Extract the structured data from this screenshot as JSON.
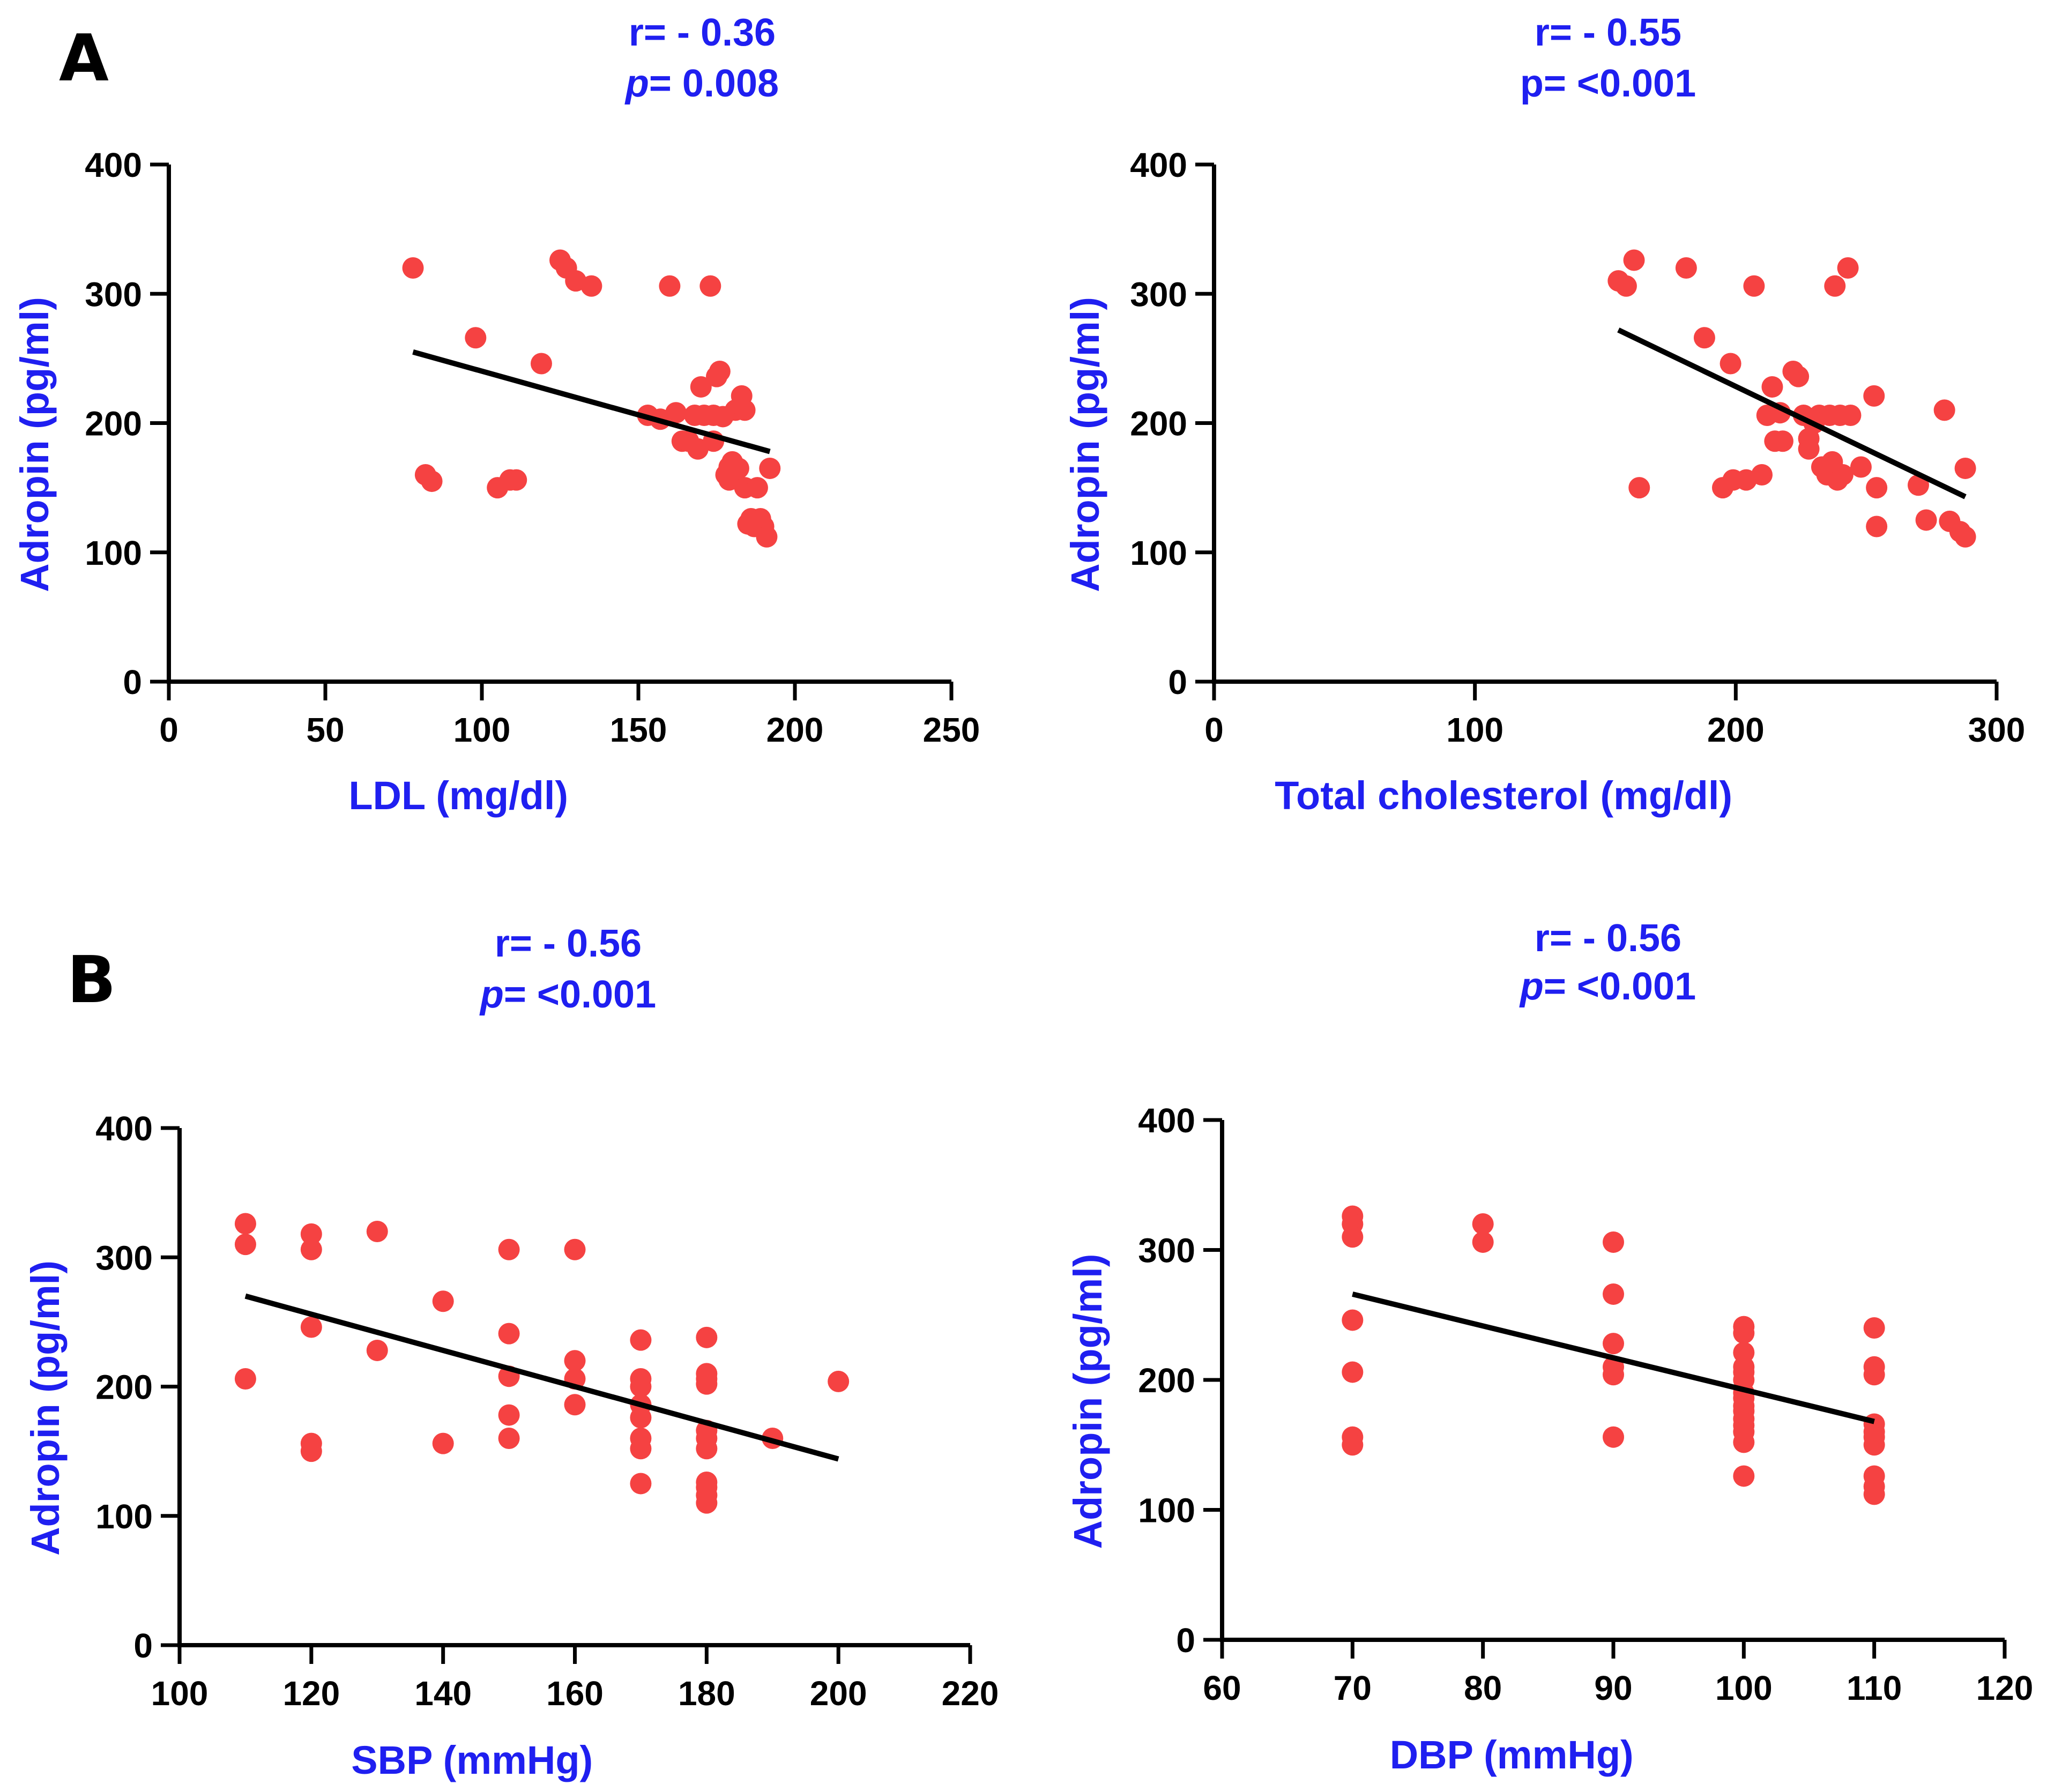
{
  "figure": {
    "panel_labels": [
      "A",
      "B"
    ],
    "colors": {
      "annotation": "#1f1ff0",
      "axis_label": "#1f1ff0",
      "point": "#f54242",
      "fit_line": "#000000",
      "axis": "#000000"
    }
  },
  "chart_data": [
    {
      "type": "scatter",
      "panel": "A",
      "r_text": "r= - 0.36",
      "p_label": "p",
      "p_value": "= 0.008",
      "xlabel": "LDL (mg/dl)",
      "ylabel": "Adropin (pg/ml)",
      "xlim": [
        0,
        250
      ],
      "ylim": [
        0,
        400
      ],
      "xticks": [
        0,
        50,
        100,
        150,
        200,
        250
      ],
      "yticks": [
        0,
        100,
        200,
        300,
        400
      ],
      "fit_line": [
        [
          78,
          255
        ],
        [
          192,
          178
        ]
      ],
      "points": [
        [
          78,
          320
        ],
        [
          82,
          160
        ],
        [
          84,
          155
        ],
        [
          98,
          266
        ],
        [
          105,
          150
        ],
        [
          109,
          156
        ],
        [
          111,
          156
        ],
        [
          119,
          246
        ],
        [
          125,
          326
        ],
        [
          127,
          320
        ],
        [
          130,
          310
        ],
        [
          135,
          306
        ],
        [
          153,
          206
        ],
        [
          157,
          203
        ],
        [
          160,
          306
        ],
        [
          162,
          208
        ],
        [
          164,
          186
        ],
        [
          166,
          186
        ],
        [
          168,
          206
        ],
        [
          169,
          180
        ],
        [
          170,
          228
        ],
        [
          171,
          206
        ],
        [
          173,
          306
        ],
        [
          174,
          206
        ],
        [
          174,
          186
        ],
        [
          175,
          236
        ],
        [
          176,
          240
        ],
        [
          177,
          205
        ],
        [
          178,
          160
        ],
        [
          179,
          156
        ],
        [
          179,
          166
        ],
        [
          180,
          170
        ],
        [
          181,
          210
        ],
        [
          182,
          165
        ],
        [
          183,
          221
        ],
        [
          184,
          150
        ],
        [
          184,
          210
        ],
        [
          185,
          122
        ],
        [
          186,
          126
        ],
        [
          187,
          120
        ],
        [
          188,
          150
        ],
        [
          189,
          126
        ],
        [
          190,
          120
        ],
        [
          191,
          112
        ],
        [
          192,
          165
        ]
      ]
    },
    {
      "type": "scatter",
      "panel": "A",
      "r_text": "r= - 0.55",
      "p_label": "p",
      "p_value": "= <0.001",
      "p_italic": false,
      "xlabel": "Total cholesterol (mg/dl)",
      "ylabel": "Adropin (pg/ml)",
      "xlim": [
        0,
        300
      ],
      "ylim": [
        0,
        400
      ],
      "xticks": [
        0,
        100,
        200,
        300
      ],
      "yticks": [
        0,
        100,
        200,
        300,
        400
      ],
      "fit_line": [
        [
          155,
          272
        ],
        [
          288,
          143
        ]
      ],
      "points": [
        [
          155,
          310
        ],
        [
          158,
          306
        ],
        [
          161,
          326
        ],
        [
          163,
          150
        ],
        [
          181,
          320
        ],
        [
          188,
          266
        ],
        [
          195,
          150
        ],
        [
          198,
          246
        ],
        [
          199,
          156
        ],
        [
          204,
          156
        ],
        [
          207,
          306
        ],
        [
          210,
          160
        ],
        [
          212,
          206
        ],
        [
          214,
          228
        ],
        [
          215,
          186
        ],
        [
          217,
          208
        ],
        [
          218,
          186
        ],
        [
          222,
          240
        ],
        [
          224,
          236
        ],
        [
          226,
          206
        ],
        [
          228,
          180
        ],
        [
          228,
          188
        ],
        [
          230,
          200
        ],
        [
          232,
          206
        ],
        [
          233,
          166
        ],
        [
          235,
          160
        ],
        [
          236,
          206
        ],
        [
          237,
          170
        ],
        [
          238,
          306
        ],
        [
          239,
          156
        ],
        [
          240,
          206
        ],
        [
          241,
          160
        ],
        [
          243,
          320
        ],
        [
          244,
          206
        ],
        [
          248,
          166
        ],
        [
          253,
          221
        ],
        [
          254,
          150
        ],
        [
          254,
          120
        ],
        [
          270,
          152
        ],
        [
          273,
          125
        ],
        [
          280,
          210
        ],
        [
          282,
          124
        ],
        [
          286,
          116
        ],
        [
          288,
          112
        ],
        [
          288,
          165
        ]
      ]
    },
    {
      "type": "scatter",
      "panel": "B",
      "r_text": "r= - 0.56",
      "p_label": "p",
      "p_value": "= <0.001",
      "xlabel": "SBP (mmHg)",
      "ylabel": "Adropin (pg/ml)",
      "xlim": [
        100,
        220
      ],
      "ylim": [
        0,
        400
      ],
      "xticks": [
        100,
        120,
        140,
        160,
        180,
        200,
        220
      ],
      "yticks": [
        0,
        100,
        200,
        300,
        400
      ],
      "fit_line": [
        [
          110,
          270
        ],
        [
          200,
          144
        ]
      ],
      "points": [
        [
          110,
          326
        ],
        [
          110,
          310
        ],
        [
          110,
          206
        ],
        [
          120,
          318
        ],
        [
          120,
          306
        ],
        [
          120,
          246
        ],
        [
          120,
          156
        ],
        [
          120,
          150
        ],
        [
          130,
          320
        ],
        [
          130,
          228
        ],
        [
          140,
          266
        ],
        [
          140,
          156
        ],
        [
          150,
          306
        ],
        [
          150,
          241
        ],
        [
          150,
          208
        ],
        [
          150,
          178
        ],
        [
          150,
          160
        ],
        [
          160,
          306
        ],
        [
          160,
          220
        ],
        [
          160,
          206
        ],
        [
          160,
          186
        ],
        [
          170,
          236
        ],
        [
          170,
          206
        ],
        [
          170,
          200
        ],
        [
          170,
          186
        ],
        [
          170,
          176
        ],
        [
          170,
          160
        ],
        [
          170,
          152
        ],
        [
          170,
          125
        ],
        [
          180,
          238
        ],
        [
          180,
          210
        ],
        [
          180,
          206
        ],
        [
          180,
          202
        ],
        [
          180,
          166
        ],
        [
          180,
          160
        ],
        [
          180,
          152
        ],
        [
          180,
          126
        ],
        [
          180,
          122
        ],
        [
          180,
          116
        ],
        [
          180,
          110
        ],
        [
          190,
          160
        ],
        [
          200,
          204
        ]
      ]
    },
    {
      "type": "scatter",
      "panel": "B",
      "r_text": "r= - 0.56",
      "p_label": "p",
      "p_value": "= <0.001",
      "xlabel": "DBP (mmHg)",
      "ylabel": "Adropin (pg/ml)",
      "xlim": [
        60,
        120
      ],
      "ylim": [
        0,
        400
      ],
      "xticks": [
        60,
        70,
        80,
        90,
        100,
        110,
        120
      ],
      "yticks": [
        0,
        100,
        200,
        300,
        400
      ],
      "fit_line": [
        [
          70,
          266
        ],
        [
          110,
          168
        ]
      ],
      "points": [
        [
          70,
          326
        ],
        [
          70,
          320
        ],
        [
          70,
          310
        ],
        [
          70,
          246
        ],
        [
          70,
          206
        ],
        [
          70,
          156
        ],
        [
          70,
          150
        ],
        [
          80,
          320
        ],
        [
          80,
          306
        ],
        [
          90,
          306
        ],
        [
          90,
          266
        ],
        [
          90,
          228
        ],
        [
          90,
          210
        ],
        [
          90,
          204
        ],
        [
          90,
          156
        ],
        [
          100,
          241
        ],
        [
          100,
          236
        ],
        [
          100,
          221
        ],
        [
          100,
          210
        ],
        [
          100,
          206
        ],
        [
          100,
          200
        ],
        [
          100,
          190
        ],
        [
          100,
          186
        ],
        [
          100,
          180
        ],
        [
          100,
          176
        ],
        [
          100,
          170
        ],
        [
          100,
          165
        ],
        [
          100,
          160
        ],
        [
          100,
          152
        ],
        [
          100,
          126
        ],
        [
          110,
          240
        ],
        [
          110,
          210
        ],
        [
          110,
          204
        ],
        [
          110,
          166
        ],
        [
          110,
          160
        ],
        [
          110,
          156
        ],
        [
          110,
          150
        ],
        [
          110,
          126
        ],
        [
          110,
          118
        ],
        [
          110,
          112
        ]
      ]
    }
  ]
}
